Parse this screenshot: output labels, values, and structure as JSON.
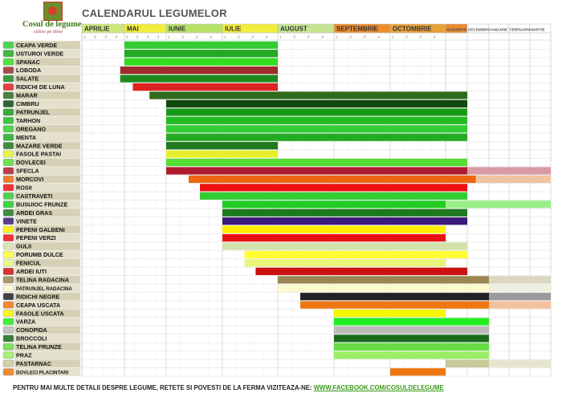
{
  "title": "CALENDARUL LEGUMELOR",
  "logo": {
    "name": "Cosul de legume",
    "tagline": "culese pe alese"
  },
  "footer": {
    "text": "PENTRU MAI MULTE DETALII DESPRE LEGUME, RETETE SI POVESTI DE LA FERMA VIZITEAZA-NE:",
    "link": "WWW.FACEBOOK.COM/COSULDELEGUME"
  },
  "chart_data": {
    "type": "table",
    "x_unit": "week of month (1-4)",
    "months": [
      {
        "name": "APRILIE",
        "color": "#cfe77d"
      },
      {
        "name": "MAI",
        "color": "#f2ee3c"
      },
      {
        "name": "IUNIE",
        "color": "#b6e26a"
      },
      {
        "name": "IULIE",
        "color": "#f2ee3c"
      },
      {
        "name": "AUGUST",
        "color": "#c5e690"
      },
      {
        "name": "SEPTEMBRIE",
        "color": "#ec8c2e"
      },
      {
        "name": "OCTOMBRIE",
        "color": "#e9a238"
      },
      {
        "name": "NOIEMBRIE",
        "color": "#ec8c2e"
      },
      {
        "name": "DECEMBRIE",
        "color": "#ffffff"
      },
      {
        "name": "IANUARIE",
        "color": "#ffffff"
      },
      {
        "name": "FEBRUARIE",
        "color": "#ffffff"
      },
      {
        "name": "MARTIE",
        "color": "#ffffff"
      }
    ],
    "week_labels": [
      "1",
      "2",
      "3",
      "4"
    ],
    "rows": [
      {
        "name": "CEAPA VERDE",
        "icon": "green-onion-icon",
        "bars": [
          {
            "from": 1.0,
            "to": 4.0,
            "color": "#33cc33"
          }
        ]
      },
      {
        "name": "USTUROI VERDE",
        "icon": "garlic-icon",
        "bars": [
          {
            "from": 1.0,
            "to": 4.0,
            "color": "#22aa22"
          }
        ]
      },
      {
        "name": "SPANAC",
        "icon": "spinach-icon",
        "bars": [
          {
            "from": 1.0,
            "to": 4.0,
            "color": "#33dd22"
          }
        ]
      },
      {
        "name": "LOBODA",
        "icon": "orache-icon",
        "bars": [
          {
            "from": 0.9,
            "to": 4.0,
            "color": "#9e2b2b"
          }
        ]
      },
      {
        "name": "SALATE",
        "icon": "lettuce-icon",
        "bars": [
          {
            "from": 0.9,
            "to": 4.0,
            "color": "#1e8a1e"
          }
        ]
      },
      {
        "name": "RIDICHI DE LUNA",
        "icon": "radish-icon",
        "bars": [
          {
            "from": 1.2,
            "to": 4.0,
            "color": "#dd2222"
          }
        ]
      },
      {
        "name": "MARAR",
        "icon": "dill-icon",
        "bars": [
          {
            "from": 1.6,
            "to": 8.0,
            "color": "#2f6b1c"
          }
        ]
      },
      {
        "name": "CIMBRU",
        "icon": "thyme-icon",
        "bars": [
          {
            "from": 2.0,
            "to": 8.0,
            "color": "#0e4a0e"
          }
        ]
      },
      {
        "name": "PATRUNJEL",
        "icon": "parsley-icon",
        "bars": [
          {
            "from": 2.0,
            "to": 8.0,
            "color": "#1a9a1a"
          }
        ]
      },
      {
        "name": "TARHON",
        "icon": "tarragon-icon",
        "bars": [
          {
            "from": 2.0,
            "to": 8.0,
            "color": "#22bb22"
          }
        ]
      },
      {
        "name": "OREGANO",
        "icon": "oregano-icon",
        "bars": [
          {
            "from": 2.0,
            "to": 8.0,
            "color": "#33cc33"
          }
        ]
      },
      {
        "name": "MENTA",
        "icon": "mint-icon",
        "bars": [
          {
            "from": 2.0,
            "to": 8.0,
            "color": "#22aa22"
          }
        ]
      },
      {
        "name": "MAZARE VERDE",
        "icon": "peas-icon",
        "bars": [
          {
            "from": 2.0,
            "to": 4.0,
            "color": "#1f7a1f"
          }
        ]
      },
      {
        "name": "FASOLE PASTAI",
        "icon": "green-beans-icon",
        "bars": [
          {
            "from": 2.0,
            "to": 4.0,
            "color": "#e6f02a"
          }
        ]
      },
      {
        "name": "DOVLECEI",
        "icon": "zucchini-icon",
        "bars": [
          {
            "from": 2.0,
            "to": 8.0,
            "color": "#55dd33"
          }
        ]
      },
      {
        "name": "SFECLA",
        "icon": "beetroot-icon",
        "bars": [
          {
            "from": 2.0,
            "to": 8.0,
            "color": "#b01c2e"
          },
          {
            "from": 8.0,
            "to": 12.0,
            "color": "#d99aa5"
          }
        ]
      },
      {
        "name": "MORCOVI",
        "icon": "carrot-icon",
        "bars": [
          {
            "from": 2.4,
            "to": 8.4,
            "color": "#ee6611"
          },
          {
            "from": 8.4,
            "to": 12.0,
            "color": "#f0c4a0"
          }
        ]
      },
      {
        "name": "ROSII",
        "icon": "tomato-icon",
        "bars": [
          {
            "from": 2.6,
            "to": 8.0,
            "color": "#ee1111"
          }
        ]
      },
      {
        "name": "CASTRAVETI",
        "icon": "cucumber-icon",
        "bars": [
          {
            "from": 2.6,
            "to": 8.0,
            "color": "#33cc33"
          }
        ]
      },
      {
        "name": "BUSUIOC FRUNZE",
        "icon": "basil-icon",
        "bars": [
          {
            "from": 3.0,
            "to": 7.0,
            "color": "#22cc22"
          },
          {
            "from": 7.0,
            "to": 12.0,
            "color": "#99ee88"
          }
        ]
      },
      {
        "name": "ARDEI GRAS",
        "icon": "bell-pepper-icon",
        "bars": [
          {
            "from": 3.0,
            "to": 8.0,
            "color": "#1e7a1e"
          }
        ]
      },
      {
        "name": "VINETE",
        "icon": "eggplant-icon",
        "bars": [
          {
            "from": 3.0,
            "to": 8.0,
            "color": "#3a1a7a"
          }
        ]
      },
      {
        "name": "PEPENI GALBENI",
        "icon": "melon-icon",
        "bars": [
          {
            "from": 3.0,
            "to": 7.0,
            "color": "#ffee00"
          }
        ]
      },
      {
        "name": "PEPENI VERZI",
        "icon": "watermelon-icon",
        "bars": [
          {
            "from": 3.0,
            "to": 7.0,
            "color": "#ee1111"
          }
        ]
      },
      {
        "name": "GULII",
        "icon": "kohlrabi-icon",
        "bars": [
          {
            "from": 3.0,
            "to": 8.0,
            "color": "#d2e0aa"
          }
        ]
      },
      {
        "name": "PORUMB DULCE",
        "icon": "corn-icon",
        "bars": [
          {
            "from": 3.4,
            "to": 8.0,
            "color": "#ffff33"
          }
        ]
      },
      {
        "name": "FENICUL",
        "icon": "fennel-icon",
        "bars": [
          {
            "from": 3.4,
            "to": 7.0,
            "color": "#e8f57a"
          }
        ]
      },
      {
        "name": "ARDEI IUTI",
        "icon": "hot-pepper-icon",
        "bars": [
          {
            "from": 3.6,
            "to": 8.0,
            "color": "#cc1111"
          }
        ]
      },
      {
        "name": "TELINA RADACINA",
        "icon": "celery-root-icon",
        "bars": [
          {
            "from": 4.0,
            "to": 9.0,
            "color": "#9b8552"
          },
          {
            "from": 9.0,
            "to": 12.0,
            "color": "#ddd6c0"
          }
        ]
      },
      {
        "name": "PATRUNJEL RADACINA",
        "icon": "parsley-root-icon",
        "bars": [
          {
            "from": 4.0,
            "to": 9.0,
            "color": "#fbf8cc"
          },
          {
            "from": 9.0,
            "to": 12.0,
            "color": "#efefe0"
          }
        ]
      },
      {
        "name": "RIDICHI NEGRE",
        "icon": "black-radish-icon",
        "bars": [
          {
            "from": 4.4,
            "to": 9.0,
            "color": "#222222"
          },
          {
            "from": 9.0,
            "to": 12.0,
            "color": "#9a9a9a"
          }
        ]
      },
      {
        "name": "CEAPA USCATA",
        "icon": "onion-icon",
        "bars": [
          {
            "from": 4.4,
            "to": 9.0,
            "color": "#ee7711"
          },
          {
            "from": 9.0,
            "to": 12.0,
            "color": "#f2c2a0"
          }
        ]
      },
      {
        "name": "FASOLE USCATA",
        "icon": "dry-beans-icon",
        "bars": [
          {
            "from": 5.0,
            "to": 7.0,
            "color": "#f6f600"
          }
        ]
      },
      {
        "name": "VARZA",
        "icon": "cabbage-icon",
        "bars": [
          {
            "from": 5.0,
            "to": 9.0,
            "color": "#22ee22"
          }
        ]
      },
      {
        "name": "CONOPIDA",
        "icon": "cauliflower-icon",
        "bars": [
          {
            "from": 5.0,
            "to": 9.0,
            "color": "#bbbbbb"
          }
        ]
      },
      {
        "name": "BROCCOLI",
        "icon": "broccoli-icon",
        "bars": [
          {
            "from": 5.0,
            "to": 9.0,
            "color": "#1a6a1a"
          }
        ]
      },
      {
        "name": "TELINA FRUNZE",
        "icon": "celery-leaves-icon",
        "bars": [
          {
            "from": 5.0,
            "to": 9.0,
            "color": "#66dd44"
          }
        ]
      },
      {
        "name": "PRAZ",
        "icon": "leek-icon",
        "bars": [
          {
            "from": 5.0,
            "to": 9.0,
            "color": "#99ee66"
          }
        ]
      },
      {
        "name": "PASTARNAC",
        "icon": "parsnip-icon",
        "bars": [
          {
            "from": 7.0,
            "to": 9.0,
            "color": "#c9c99a"
          },
          {
            "from": 9.0,
            "to": 12.0,
            "color": "#e6e6d0"
          }
        ]
      },
      {
        "name": "DOVLECI PLACINTARI",
        "icon": "pumpkin-icon",
        "bars": [
          {
            "from": 6.0,
            "to": 7.0,
            "color": "#ee7711"
          }
        ]
      }
    ]
  }
}
